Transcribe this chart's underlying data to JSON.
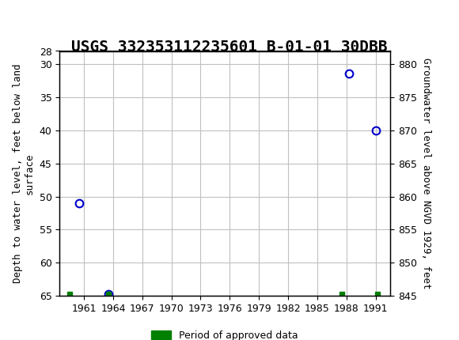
{
  "title": "USGS 332353112235601 B-01-01 30DBB",
  "ylabel_left": "Depth to water level, feet below land\nsurface",
  "ylabel_right": "Groundwater level above NGVD 1929, feet",
  "xlabel": "",
  "ylim_left": [
    28,
    65
  ],
  "ylim_right": [
    845,
    882
  ],
  "xlim": [
    1958.5,
    1992.5
  ],
  "xtick_values": [
    1961,
    1964,
    1967,
    1970,
    1973,
    1976,
    1979,
    1982,
    1985,
    1988,
    1991
  ],
  "ytick_left": [
    28,
    30,
    35,
    40,
    45,
    50,
    55,
    60,
    65
  ],
  "ytick_right": [
    845,
    850,
    855,
    860,
    865,
    870,
    875,
    880
  ],
  "data_points": {
    "x": [
      1960.5,
      1963.5,
      1988.3,
      1991.0
    ],
    "y": [
      51.0,
      64.8,
      31.4,
      40.0
    ]
  },
  "approved_markers": {
    "x": [
      1959.5,
      1963.5,
      1987.5,
      1991.2
    ],
    "y": [
      64.8,
      64.8,
      64.8,
      64.8
    ]
  },
  "point_color": "#0000CC",
  "approved_color": "#008000",
  "background_color": "#ffffff",
  "header_color": "#006633",
  "grid_color": "#c0c0c0",
  "title_fontsize": 14,
  "axis_fontsize": 9,
  "tick_fontsize": 9,
  "legend_label": "Period of approved data"
}
